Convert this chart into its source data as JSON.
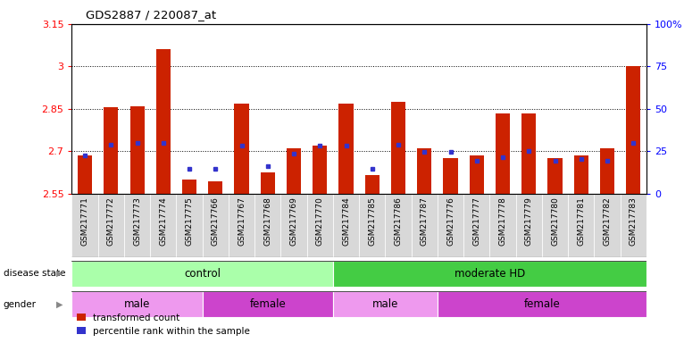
{
  "title": "GDS2887 / 220087_at",
  "samples": [
    "GSM217771",
    "GSM217772",
    "GSM217773",
    "GSM217774",
    "GSM217775",
    "GSM217766",
    "GSM217767",
    "GSM217768",
    "GSM217769",
    "GSM217770",
    "GSM217784",
    "GSM217785",
    "GSM217786",
    "GSM217787",
    "GSM217776",
    "GSM217777",
    "GSM217778",
    "GSM217779",
    "GSM217780",
    "GSM217781",
    "GSM217782",
    "GSM217783"
  ],
  "red_values": [
    2.685,
    2.855,
    2.86,
    3.06,
    2.6,
    2.595,
    2.87,
    2.625,
    2.71,
    2.72,
    2.87,
    2.615,
    2.875,
    2.71,
    2.675,
    2.685,
    2.835,
    2.835,
    2.675,
    2.685,
    2.71,
    3.0
  ],
  "blue_values": [
    2.685,
    2.725,
    2.73,
    2.73,
    2.637,
    2.637,
    2.72,
    2.648,
    2.693,
    2.72,
    2.72,
    2.637,
    2.725,
    2.697,
    2.697,
    2.668,
    2.678,
    2.7,
    2.668,
    2.673,
    2.668,
    2.73
  ],
  "ylim_left": [
    2.55,
    3.15
  ],
  "ylim_right": [
    0,
    100
  ],
  "yticks_left": [
    2.55,
    2.7,
    2.85,
    3.0,
    3.15
  ],
  "ytick_labels_left": [
    "2.55",
    "2.7",
    "2.85",
    "3",
    "3.15"
  ],
  "yticks_right": [
    0,
    25,
    50,
    75,
    100
  ],
  "ytick_labels_right": [
    "0",
    "25",
    "50",
    "75",
    "100%"
  ],
  "bar_color": "#cc2200",
  "blue_color": "#3333cc",
  "plot_bg": "#ffffff",
  "label_bg": "#d8d8d8",
  "disease_groups": [
    {
      "label": "control",
      "start": 0,
      "end": 10,
      "color": "#aaffaa"
    },
    {
      "label": "moderate HD",
      "start": 10,
      "end": 22,
      "color": "#44cc44"
    }
  ],
  "gender_groups": [
    {
      "label": "male",
      "start": 0,
      "end": 5,
      "color": "#ee99ee"
    },
    {
      "label": "female",
      "start": 5,
      "end": 10,
      "color": "#cc44cc"
    },
    {
      "label": "male",
      "start": 10,
      "end": 14,
      "color": "#ee99ee"
    },
    {
      "label": "female",
      "start": 14,
      "end": 22,
      "color": "#cc44cc"
    }
  ],
  "legend_items": [
    {
      "label": "transformed count",
      "color": "#cc2200"
    },
    {
      "label": "percentile rank within the sample",
      "color": "#3333cc"
    }
  ],
  "fig_width": 7.66,
  "fig_height": 3.84,
  "dpi": 100
}
